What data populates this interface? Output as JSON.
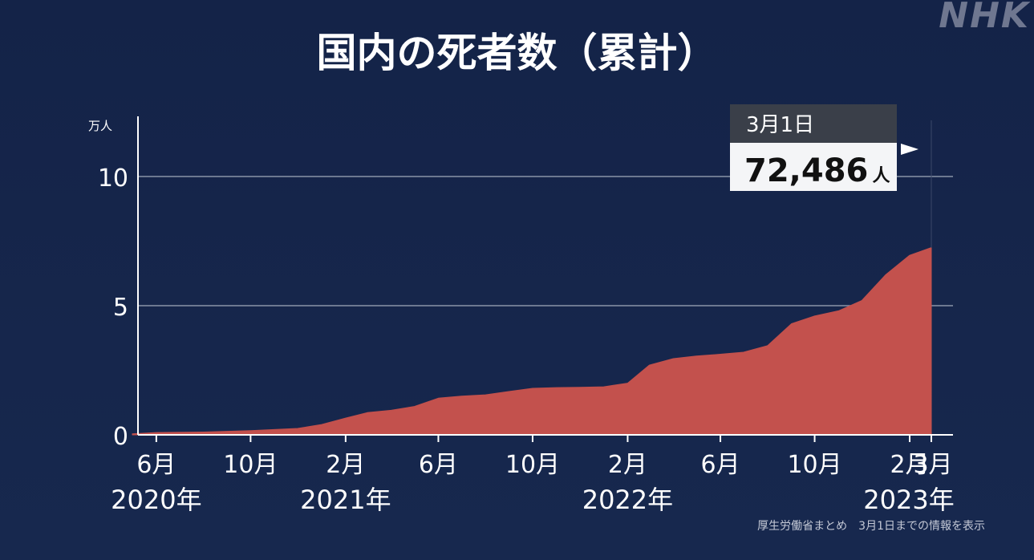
{
  "logo": "NHK",
  "title": "国内の死者数（累計）",
  "source_note": "厚生労働省まとめ　3月1日までの情報を表示",
  "callout": {
    "date": "3月1日",
    "value": "72,486",
    "unit": "人"
  },
  "colors": {
    "background": "#15244a",
    "area": "#c3514d",
    "grid": "#8a93a8",
    "text": "#ffffff"
  },
  "chart_data": {
    "type": "area",
    "title": "国内の死者数（累計）",
    "y_unit": "万人",
    "ylim": [
      0,
      12
    ],
    "yticks": [
      {
        "value": 0,
        "label": "0"
      },
      {
        "value": 5,
        "label": "5"
      },
      {
        "value": 10,
        "label": "10"
      }
    ],
    "gridlines": [
      5,
      10
    ],
    "xlim": [
      "2020-05-01",
      "2023-03-01"
    ],
    "xticks": [
      {
        "date": "2020-06-01",
        "label": "6月",
        "year": "2020年"
      },
      {
        "date": "2020-10-01",
        "label": "10月",
        "year": ""
      },
      {
        "date": "2021-02-01",
        "label": "2月",
        "year": "2021年"
      },
      {
        "date": "2021-06-01",
        "label": "6月",
        "year": ""
      },
      {
        "date": "2021-10-01",
        "label": "10月",
        "year": ""
      },
      {
        "date": "2022-02-01",
        "label": "2月",
        "year": "2022年"
      },
      {
        "date": "2022-06-01",
        "label": "6月",
        "year": ""
      },
      {
        "date": "2022-10-01",
        "label": "10月",
        "year": ""
      },
      {
        "date": "2023-02-01",
        "label": "2月",
        "year": ""
      },
      {
        "date": "2023-03-01",
        "label": "3月",
        "year": "2023年"
      }
    ],
    "series": [
      {
        "points": [
          {
            "date": "2020-05-01",
            "value": 0.04
          },
          {
            "date": "2020-06-01",
            "value": 0.09
          },
          {
            "date": "2020-08-01",
            "value": 0.11
          },
          {
            "date": "2020-10-01",
            "value": 0.16
          },
          {
            "date": "2020-12-01",
            "value": 0.25
          },
          {
            "date": "2021-01-01",
            "value": 0.4
          },
          {
            "date": "2021-02-01",
            "value": 0.65
          },
          {
            "date": "2021-03-01",
            "value": 0.86
          },
          {
            "date": "2021-04-01",
            "value": 0.95
          },
          {
            "date": "2021-05-01",
            "value": 1.1
          },
          {
            "date": "2021-06-01",
            "value": 1.42
          },
          {
            "date": "2021-07-01",
            "value": 1.5
          },
          {
            "date": "2021-08-01",
            "value": 1.55
          },
          {
            "date": "2021-09-01",
            "value": 1.68
          },
          {
            "date": "2021-10-01",
            "value": 1.8
          },
          {
            "date": "2021-11-01",
            "value": 1.83
          },
          {
            "date": "2021-12-01",
            "value": 1.84
          },
          {
            "date": "2022-01-01",
            "value": 1.86
          },
          {
            "date": "2022-02-01",
            "value": 2.0
          },
          {
            "date": "2022-03-01",
            "value": 2.7
          },
          {
            "date": "2022-04-01",
            "value": 2.95
          },
          {
            "date": "2022-05-01",
            "value": 3.05
          },
          {
            "date": "2022-06-01",
            "value": 3.12
          },
          {
            "date": "2022-07-01",
            "value": 3.2
          },
          {
            "date": "2022-08-01",
            "value": 3.45
          },
          {
            "date": "2022-09-01",
            "value": 4.3
          },
          {
            "date": "2022-10-01",
            "value": 4.6
          },
          {
            "date": "2022-11-01",
            "value": 4.8
          },
          {
            "date": "2022-12-01",
            "value": 5.2
          },
          {
            "date": "2023-01-01",
            "value": 6.2
          },
          {
            "date": "2023-02-01",
            "value": 6.95
          },
          {
            "date": "2023-03-01",
            "value": 7.2486
          }
        ]
      }
    ]
  }
}
